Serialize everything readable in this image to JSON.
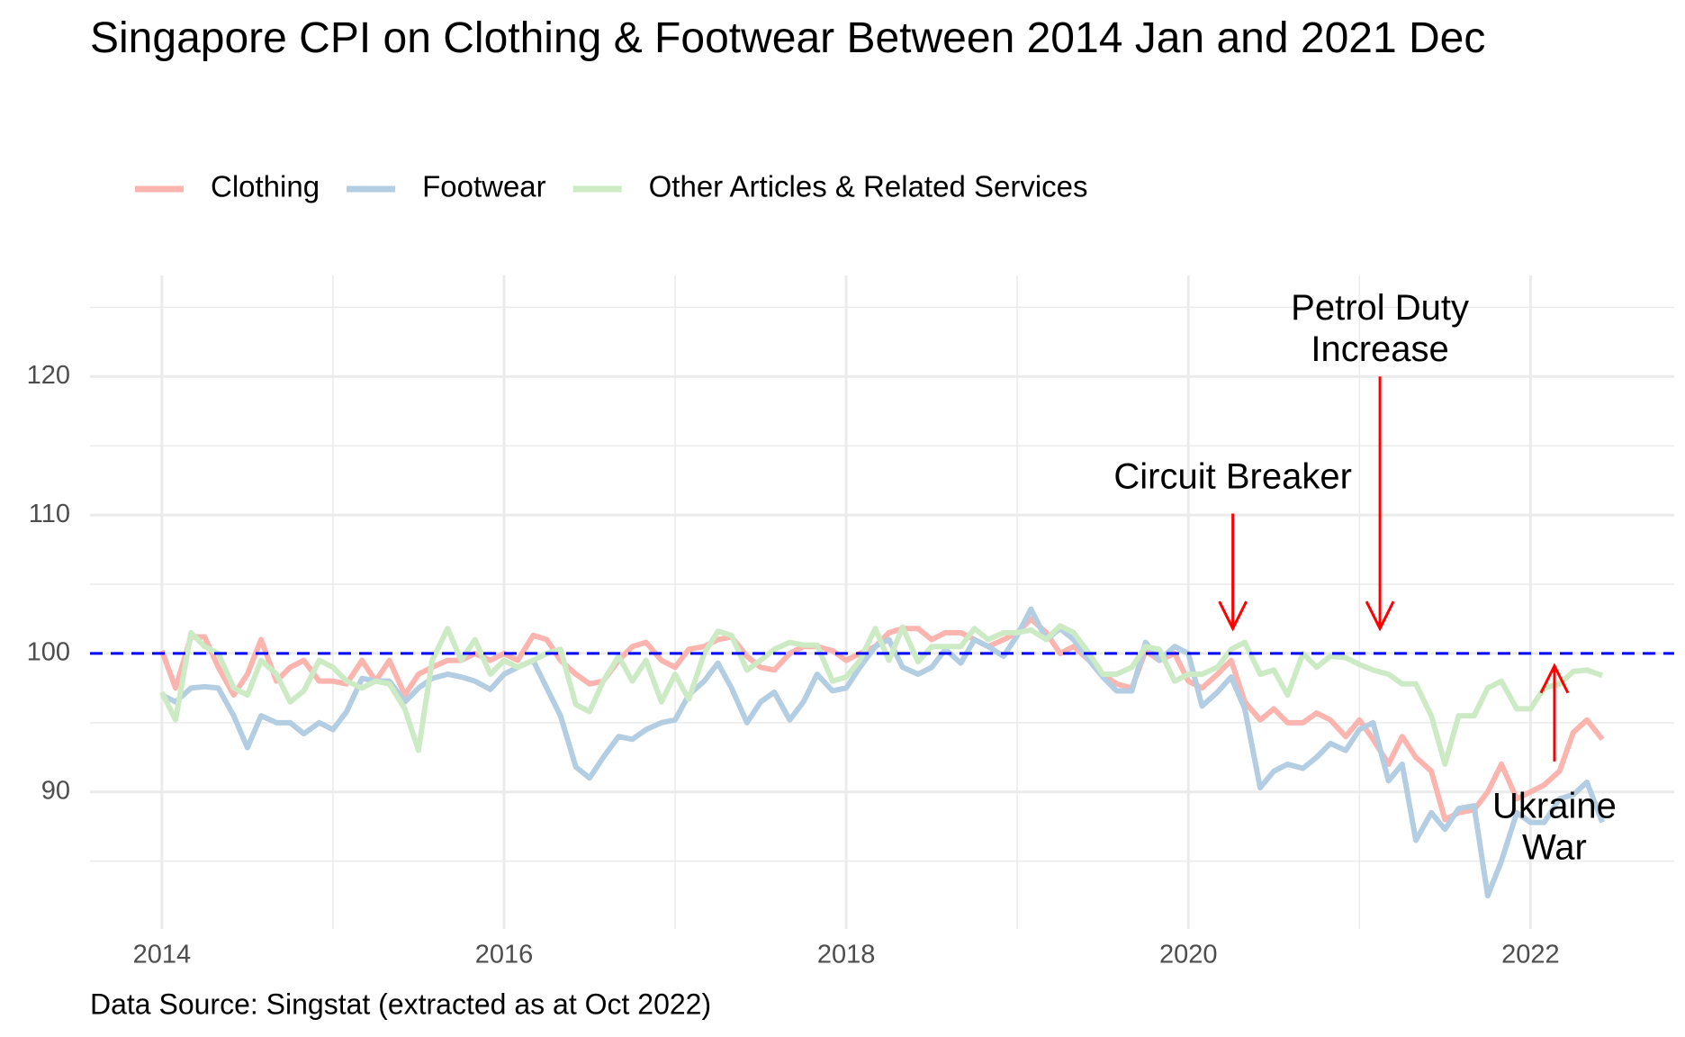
{
  "chart_data": {
    "type": "line",
    "title": "Singapore CPI on Clothing & Footwear Between 2014 Jan and 2021 Dec",
    "caption": "Data Source: Singstat (extracted as at Oct 2022)",
    "x": [
      2014,
      2014.08,
      2014.17,
      2014.25,
      2014.33,
      2014.42,
      2014.5,
      2014.58,
      2014.67,
      2014.75,
      2014.83,
      2014.92,
      2015,
      2015.08,
      2015.17,
      2015.25,
      2015.33,
      2015.42,
      2015.5,
      2015.58,
      2015.67,
      2015.75,
      2015.83,
      2015.92,
      2016,
      2016.08,
      2016.17,
      2016.25,
      2016.33,
      2016.42,
      2016.5,
      2016.58,
      2016.67,
      2016.75,
      2016.83,
      2016.92,
      2017,
      2017.08,
      2017.17,
      2017.25,
      2017.33,
      2017.42,
      2017.5,
      2017.58,
      2017.67,
      2017.75,
      2017.83,
      2017.92,
      2018,
      2018.08,
      2018.17,
      2018.25,
      2018.33,
      2018.42,
      2018.5,
      2018.58,
      2018.67,
      2018.75,
      2018.83,
      2018.92,
      2019,
      2019.08,
      2019.17,
      2019.25,
      2019.33,
      2019.42,
      2019.5,
      2019.58,
      2019.67,
      2019.75,
      2019.83,
      2019.92,
      2020,
      2020.08,
      2020.17,
      2020.25,
      2020.33,
      2020.42,
      2020.5,
      2020.58,
      2020.67,
      2020.75,
      2020.83,
      2020.92,
      2021,
      2021.08,
      2021.17,
      2021.25,
      2021.33,
      2021.42,
      2021.5,
      2021.58,
      2021.67,
      2021.75,
      2021.83,
      2021.92,
      2022,
      2022.08,
      2022.17,
      2022.25,
      2022.33,
      2022.42
    ],
    "series": [
      {
        "name": "Clothing",
        "color": "#fbb4ae",
        "values": [
          100.2,
          97.5,
          101.2,
          101.2,
          99,
          97,
          98.5,
          101,
          98,
          99,
          99.5,
          98,
          98,
          97.8,
          99.5,
          98,
          99.5,
          97,
          98.5,
          99,
          99.5,
          99.5,
          100,
          99.5,
          100,
          99.5,
          101.3,
          101,
          99.5,
          98.5,
          97.8,
          98,
          99.5,
          100.5,
          100.8,
          99.5,
          99,
          100.3,
          100.5,
          101,
          101.2,
          99.8,
          99,
          98.8,
          100,
          100.5,
          100.5,
          100.2,
          99.5,
          100,
          100.5,
          101.5,
          101.8,
          101.8,
          101,
          101.5,
          101.5,
          101,
          100.5,
          101,
          101.5,
          102.5,
          101.5,
          100,
          100.5,
          99.5,
          98.5,
          97.8,
          97.5,
          100.2,
          99.5,
          100,
          98,
          97.5,
          98.5,
          99.5,
          96.5,
          95.2,
          96,
          95,
          95,
          95.7,
          95.2,
          94,
          95.2,
          93.8,
          92,
          94,
          92.5,
          91.5,
          88,
          88.5,
          88.7,
          90,
          92,
          89.5,
          90,
          90.5,
          91.5,
          94.3,
          95.2,
          93.8
        ]
      },
      {
        "name": "Footwear",
        "color": "#b3cde3",
        "values": [
          97,
          96.5,
          97.5,
          97.6,
          97.5,
          95.5,
          93.2,
          95.5,
          95,
          95,
          94.2,
          95,
          94.5,
          95.8,
          98.2,
          98,
          98,
          96.5,
          97.5,
          98.2,
          98.5,
          98.3,
          98,
          97.4,
          98.5,
          99,
          99.5,
          97.5,
          95.5,
          91.8,
          91,
          92.5,
          94,
          93.8,
          94.5,
          95,
          95.2,
          97,
          98,
          99.3,
          97.5,
          95,
          96.5,
          97.2,
          95.2,
          96.5,
          98.5,
          97.3,
          97.5,
          99,
          100.5,
          101,
          99,
          98.5,
          99,
          100.3,
          99.3,
          101,
          100.5,
          99.8,
          101.3,
          103.2,
          101,
          101.8,
          101,
          99.5,
          98.3,
          97.3,
          97.3,
          100.8,
          99.5,
          100.5,
          100,
          96.2,
          97.2,
          98.3,
          96,
          90.3,
          91.5,
          92,
          91.7,
          92.5,
          93.5,
          93,
          94.5,
          95,
          90.8,
          92,
          86.5,
          88.5,
          87.3,
          88.8,
          89,
          82.5,
          85,
          88.5,
          87.8,
          87.8,
          89.5,
          89.8,
          90.7,
          87.8
        ]
      },
      {
        "name": "Other Articles & Related Services",
        "color": "#ccebc5",
        "values": [
          97.2,
          95.2,
          101.5,
          100.5,
          100,
          97.5,
          97,
          99.5,
          98.5,
          96.5,
          97.3,
          99.5,
          99,
          98,
          97.5,
          98,
          97.8,
          96,
          93,
          99.5,
          101.8,
          99.5,
          101,
          98.5,
          99.5,
          99,
          99.5,
          100,
          100.3,
          96.3,
          95.8,
          98,
          99.8,
          98,
          99.5,
          96.5,
          98.5,
          96.7,
          100,
          101.6,
          101.3,
          98.8,
          99.5,
          100.3,
          100.8,
          100.6,
          100.6,
          98,
          98.3,
          99.5,
          101.8,
          99.5,
          101.9,
          99.4,
          100.5,
          100.5,
          100.5,
          101.8,
          101,
          101.5,
          101.5,
          101.7,
          101,
          102,
          101.5,
          100,
          98.5,
          98.5,
          99,
          100.5,
          100.3,
          98,
          98.5,
          98.5,
          99,
          100.3,
          100.8,
          98.5,
          98.8,
          97,
          100,
          99,
          99.8,
          99.7,
          99.2,
          98.8,
          98.5,
          97.8,
          97.8,
          95.5,
          92,
          95.5,
          95.5,
          97.5,
          98,
          96,
          96,
          97.5,
          97.8,
          98.7,
          98.8,
          98.4
        ]
      }
    ],
    "xlim": [
      2013.58,
      2022.84
    ],
    "ylim": [
      80.1,
      127.3
    ],
    "xticks": [
      2014,
      2016,
      2018,
      2020,
      2022
    ],
    "yticks": [
      90,
      100,
      110,
      120
    ],
    "x_minor_grid": [
      2015,
      2017,
      2019,
      2021
    ],
    "y_minor_grid": [
      85,
      95,
      105,
      115,
      125
    ],
    "grid": true,
    "legend": "top",
    "reference_line": {
      "y": 100,
      "color": "#0000ff"
    },
    "annotations": [
      {
        "lines": [
          "Circuit Breaker"
        ],
        "x": 2020.26,
        "text_y": 112.6,
        "arrow_from": 110.1,
        "arrow_to": 101.8,
        "color": "#ff0000"
      },
      {
        "lines": [
          "Petrol Duty",
          "Increase"
        ],
        "x": 2021.12,
        "text_y": 124.8,
        "arrow_from": 120,
        "arrow_to": 101.8,
        "color": "#ff0000"
      },
      {
        "lines": [
          "Ukraine",
          "War"
        ],
        "x": 2022.14,
        "text_y": 88.8,
        "arrow_from": 92.2,
        "arrow_to": 99.1,
        "color": "#ff0000"
      }
    ]
  }
}
